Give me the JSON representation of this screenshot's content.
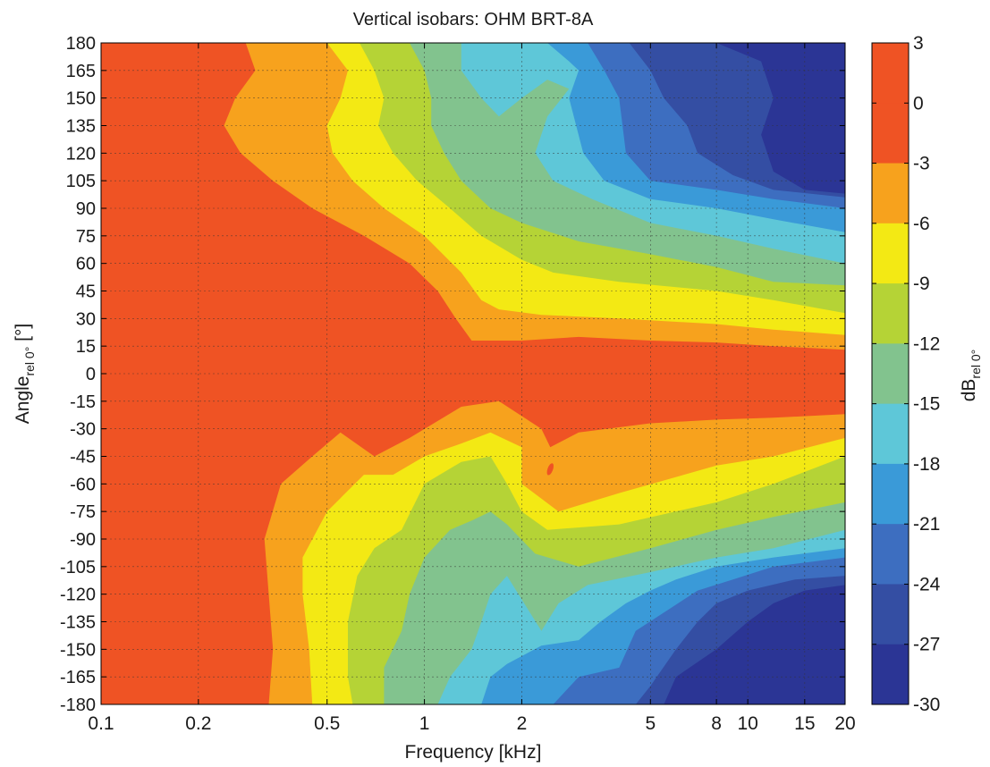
{
  "chart_data": {
    "type": "contour",
    "title": "Vertical isobars: OHM  BRT-8A",
    "xlabel": "Frequency [kHz]",
    "ylabel": {
      "base": "Angle",
      "sub": "rel 0°",
      "tail": " [°]"
    },
    "colorbar_label": {
      "base": "dB",
      "sub": "rel 0°"
    },
    "x_scale": "log",
    "xlim": [
      0.1,
      20
    ],
    "ylim": [
      -180,
      180
    ],
    "x_ticks": [
      {
        "value": 0.1,
        "label": "0.1"
      },
      {
        "value": 0.2,
        "label": "0.2"
      },
      {
        "value": 0.5,
        "label": "0.5"
      },
      {
        "value": 1,
        "label": "1"
      },
      {
        "value": 2,
        "label": "2"
      },
      {
        "value": 5,
        "label": "5"
      },
      {
        "value": 8,
        "label": "8"
      },
      {
        "value": 10,
        "label": "10"
      },
      {
        "value": 15,
        "label": "15"
      },
      {
        "value": 20,
        "label": "20"
      }
    ],
    "y_ticks": [
      {
        "value": 180,
        "label": "180"
      },
      {
        "value": 165,
        "label": "165"
      },
      {
        "value": 150,
        "label": "150"
      },
      {
        "value": 135,
        "label": "135"
      },
      {
        "value": 120,
        "label": "120"
      },
      {
        "value": 105,
        "label": "105"
      },
      {
        "value": 90,
        "label": "90"
      },
      {
        "value": 75,
        "label": "75"
      },
      {
        "value": 60,
        "label": "60"
      },
      {
        "value": 45,
        "label": "45"
      },
      {
        "value": 30,
        "label": "30"
      },
      {
        "value": 15,
        "label": "15"
      },
      {
        "value": 0,
        "label": "0"
      },
      {
        "value": -15,
        "label": "-15"
      },
      {
        "value": -30,
        "label": "-30"
      },
      {
        "value": -45,
        "label": "-45"
      },
      {
        "value": -60,
        "label": "-60"
      },
      {
        "value": -75,
        "label": "-75"
      },
      {
        "value": -90,
        "label": "-90"
      },
      {
        "value": -105,
        "label": "-105"
      },
      {
        "value": -120,
        "label": "-120"
      },
      {
        "value": -135,
        "label": "-135"
      },
      {
        "value": -150,
        "label": "-150"
      },
      {
        "value": -165,
        "label": "-165"
      },
      {
        "value": -180,
        "label": "-180"
      }
    ],
    "colorbar": {
      "levels": [
        {
          "from": 0,
          "to": 3,
          "color": "#ef5324"
        },
        {
          "from": -3,
          "to": 0,
          "color": "#ef5324"
        },
        {
          "from": -6,
          "to": -3,
          "color": "#f7a21d"
        },
        {
          "from": -9,
          "to": -6,
          "color": "#f3e914"
        },
        {
          "from": -12,
          "to": -9,
          "color": "#b5d336"
        },
        {
          "from": -15,
          "to": -12,
          "color": "#82c38e"
        },
        {
          "from": -18,
          "to": -15,
          "color": "#5ec7d8"
        },
        {
          "from": -21,
          "to": -18,
          "color": "#3a9ad8"
        },
        {
          "from": -24,
          "to": -21,
          "color": "#3d6ec0"
        },
        {
          "from": -27,
          "to": -24,
          "color": "#344ea3"
        },
        {
          "from": -30,
          "to": -27,
          "color": "#2b3595"
        }
      ],
      "ticks": [
        {
          "value": 3,
          "label": "3"
        },
        {
          "value": 0,
          "label": "0"
        },
        {
          "value": -3,
          "label": "-3"
        },
        {
          "value": -6,
          "label": "-6"
        },
        {
          "value": -9,
          "label": "-9"
        },
        {
          "value": -12,
          "label": "-12"
        },
        {
          "value": -15,
          "label": "-15"
        },
        {
          "value": -18,
          "label": "-18"
        },
        {
          "value": -21,
          "label": "-21"
        },
        {
          "value": -24,
          "label": "-24"
        },
        {
          "value": -27,
          "label": "-27"
        },
        {
          "value": -30,
          "label": "-30"
        }
      ]
    },
    "grid": true,
    "contour_boundaries": [
      {
        "level": -3,
        "color": "#f7a21d",
        "upper": [
          [
            0.1,
            180
          ],
          [
            0.28,
            180
          ],
          [
            0.3,
            165
          ],
          [
            0.26,
            150
          ],
          [
            0.24,
            135
          ],
          [
            0.27,
            120
          ],
          [
            0.34,
            105
          ],
          [
            0.45,
            90
          ],
          [
            0.65,
            75
          ],
          [
            0.9,
            60
          ],
          [
            1.1,
            45
          ],
          [
            1.25,
            30
          ],
          [
            1.4,
            18
          ],
          [
            2,
            18
          ],
          [
            3,
            20
          ],
          [
            5,
            18
          ],
          [
            8,
            17
          ],
          [
            12,
            15
          ],
          [
            20,
            13
          ]
        ],
        "lower": [
          [
            0.1,
            -180
          ],
          [
            0.33,
            -180
          ],
          [
            0.34,
            -150
          ],
          [
            0.33,
            -120
          ],
          [
            0.32,
            -90
          ],
          [
            0.36,
            -60
          ],
          [
            0.45,
            -45
          ],
          [
            0.55,
            -32
          ],
          [
            0.7,
            -45
          ],
          [
            0.9,
            -35
          ],
          [
            1.3,
            -18
          ],
          [
            1.7,
            -15
          ],
          [
            2.3,
            -30
          ],
          [
            2.45,
            -40
          ],
          [
            3,
            -32
          ],
          [
            5,
            -27
          ],
          [
            8,
            -25
          ],
          [
            12,
            -24
          ],
          [
            20,
            -22
          ]
        ]
      },
      {
        "level": -6,
        "color": "#f3e914",
        "upper": [
          [
            0.1,
            180
          ],
          [
            0.5,
            180
          ],
          [
            0.58,
            165
          ],
          [
            0.55,
            150
          ],
          [
            0.5,
            135
          ],
          [
            0.52,
            120
          ],
          [
            0.6,
            105
          ],
          [
            0.75,
            90
          ],
          [
            1,
            75
          ],
          [
            1.3,
            55
          ],
          [
            1.5,
            40
          ],
          [
            1.7,
            35
          ],
          [
            2.3,
            32
          ],
          [
            4,
            30
          ],
          [
            8,
            27
          ],
          [
            12,
            24
          ],
          [
            20,
            21
          ]
        ],
        "lower": [
          [
            0.1,
            -180
          ],
          [
            0.45,
            -180
          ],
          [
            0.44,
            -150
          ],
          [
            0.42,
            -120
          ],
          [
            0.42,
            -100
          ],
          [
            0.5,
            -75
          ],
          [
            0.65,
            -55
          ],
          [
            0.8,
            -55
          ],
          [
            1,
            -45
          ],
          [
            1.3,
            -38
          ],
          [
            1.6,
            -32
          ],
          [
            2,
            -40
          ],
          [
            2,
            -60
          ],
          [
            2.6,
            -75
          ],
          [
            4,
            -65
          ],
          [
            8,
            -50
          ],
          [
            12,
            -45
          ],
          [
            20,
            -35
          ]
        ]
      },
      {
        "level": -9,
        "color": "#b5d336",
        "upper": [
          [
            0.1,
            180
          ],
          [
            0.63,
            180
          ],
          [
            0.7,
            165
          ],
          [
            0.75,
            150
          ],
          [
            0.72,
            135
          ],
          [
            0.8,
            120
          ],
          [
            0.95,
            105
          ],
          [
            1.2,
            90
          ],
          [
            1.5,
            75
          ],
          [
            2,
            62
          ],
          [
            2.5,
            55
          ],
          [
            4,
            50
          ],
          [
            8,
            45
          ],
          [
            12,
            40
          ],
          [
            20,
            33
          ]
        ],
        "lower": [
          [
            0.1,
            -180
          ],
          [
            0.6,
            -180
          ],
          [
            0.58,
            -165
          ],
          [
            0.58,
            -135
          ],
          [
            0.62,
            -110
          ],
          [
            0.7,
            -95
          ],
          [
            0.85,
            -85
          ],
          [
            1,
            -60
          ],
          [
            1.3,
            -48
          ],
          [
            1.6,
            -45
          ],
          [
            1.8,
            -60
          ],
          [
            2,
            -75
          ],
          [
            2.4,
            -85
          ],
          [
            4,
            -82
          ],
          [
            8,
            -70
          ],
          [
            12,
            -60
          ],
          [
            20,
            -45
          ]
        ]
      },
      {
        "level": -12,
        "color": "#82c38e",
        "upper": [
          [
            0.1,
            180
          ],
          [
            0.9,
            180
          ],
          [
            1,
            165
          ],
          [
            1.05,
            150
          ],
          [
            1.05,
            135
          ],
          [
            1.15,
            120
          ],
          [
            1.3,
            105
          ],
          [
            1.6,
            90
          ],
          [
            2,
            82
          ],
          [
            3,
            72
          ],
          [
            5,
            65
          ],
          [
            8,
            58
          ],
          [
            12,
            50
          ],
          [
            20,
            48
          ]
        ],
        "lower": [
          [
            0.1,
            -180
          ],
          [
            0.75,
            -180
          ],
          [
            0.75,
            -160
          ],
          [
            0.85,
            -140
          ],
          [
            0.9,
            -120
          ],
          [
            1,
            -100
          ],
          [
            1.2,
            -85
          ],
          [
            1.4,
            -80
          ],
          [
            1.6,
            -75
          ],
          [
            1.8,
            -82
          ],
          [
            2.2,
            -98
          ],
          [
            3,
            -105
          ],
          [
            5,
            -95
          ],
          [
            8,
            -85
          ],
          [
            12,
            -78
          ],
          [
            20,
            -70
          ]
        ]
      },
      {
        "level": -15,
        "color": "#5ec7d8",
        "upper": [
          [
            0.1,
            180
          ],
          [
            1.3,
            180
          ],
          [
            1.3,
            165
          ],
          [
            1.5,
            150
          ],
          [
            1.7,
            140
          ],
          [
            2,
            150
          ],
          [
            2.4,
            160
          ],
          [
            2.8,
            155
          ],
          [
            2.4,
            140
          ],
          [
            2.2,
            120
          ],
          [
            2.5,
            105
          ],
          [
            3.3,
            95
          ],
          [
            5,
            82
          ],
          [
            8,
            75
          ],
          [
            12,
            68
          ],
          [
            20,
            60
          ]
        ],
        "lower": [
          [
            0.1,
            -180
          ],
          [
            1.1,
            -180
          ],
          [
            1.2,
            -165
          ],
          [
            1.4,
            -150
          ],
          [
            1.5,
            -135
          ],
          [
            1.6,
            -120
          ],
          [
            1.8,
            -110
          ],
          [
            2.3,
            -140
          ],
          [
            2.6,
            -125
          ],
          [
            3.2,
            -115
          ],
          [
            5,
            -108
          ],
          [
            8,
            -100
          ],
          [
            12,
            -95
          ],
          [
            20,
            -85
          ]
        ]
      },
      {
        "level": -18,
        "color": "#3a9ad8",
        "upper": [
          [
            0.1,
            180
          ],
          [
            2.4,
            180
          ],
          [
            2.8,
            170
          ],
          [
            3,
            165
          ],
          [
            2.8,
            150
          ],
          [
            3.1,
            120
          ],
          [
            3.6,
            105
          ],
          [
            5,
            95
          ],
          [
            8,
            90
          ],
          [
            12,
            84
          ],
          [
            20,
            77
          ]
        ],
        "lower": [
          [
            0.1,
            -180
          ],
          [
            1.5,
            -180
          ],
          [
            1.6,
            -165
          ],
          [
            1.8,
            -158
          ],
          [
            2.3,
            -148
          ],
          [
            3,
            -145
          ],
          [
            3.5,
            -135
          ],
          [
            4.2,
            -125
          ],
          [
            5,
            -118
          ],
          [
            6,
            -112
          ],
          [
            8,
            -105
          ],
          [
            12,
            -100
          ],
          [
            20,
            -95
          ]
        ]
      },
      {
        "level": -21,
        "color": "#3d6ec0",
        "upper": [
          [
            0.1,
            180
          ],
          [
            3.2,
            180
          ],
          [
            3.6,
            165
          ],
          [
            4,
            150
          ],
          [
            4.2,
            120
          ],
          [
            5,
            105
          ],
          [
            8,
            100
          ],
          [
            12,
            95
          ],
          [
            20,
            90
          ]
        ],
        "lower": [
          [
            0.1,
            -180
          ],
          [
            2.5,
            -180
          ],
          [
            3,
            -165
          ],
          [
            4,
            -160
          ],
          [
            4.5,
            -140
          ],
          [
            5.5,
            -130
          ],
          [
            7,
            -118
          ],
          [
            9,
            -112
          ],
          [
            12,
            -105
          ],
          [
            20,
            -100
          ]
        ]
      },
      {
        "level": -24,
        "color": "#344ea3",
        "upper": [
          [
            0.1,
            180
          ],
          [
            4.3,
            180
          ],
          [
            5,
            165
          ],
          [
            5.5,
            150
          ],
          [
            6.5,
            135
          ],
          [
            7,
            120
          ],
          [
            9,
            108
          ],
          [
            12,
            100
          ],
          [
            20,
            96
          ]
        ],
        "lower": [
          [
            0.1,
            -180
          ],
          [
            4.5,
            -180
          ],
          [
            5,
            -170
          ],
          [
            6,
            -150
          ],
          [
            7,
            -135
          ],
          [
            8,
            -125
          ],
          [
            10,
            -118
          ],
          [
            14,
            -112
          ],
          [
            20,
            -110
          ]
        ]
      },
      {
        "level": -27,
        "color": "#2b3595",
        "upper": [
          [
            0.1,
            180
          ],
          [
            8,
            180
          ],
          [
            11,
            170
          ],
          [
            12,
            150
          ],
          [
            11,
            130
          ],
          [
            12,
            110
          ],
          [
            15,
            100
          ],
          [
            20,
            98
          ]
        ],
        "lower": [
          [
            0.1,
            -180
          ],
          [
            5.5,
            -180
          ],
          [
            6,
            -165
          ],
          [
            8,
            -150
          ],
          [
            10,
            -135
          ],
          [
            12,
            -125
          ],
          [
            15,
            -118
          ],
          [
            20,
            -115
          ]
        ]
      }
    ],
    "island": {
      "x": 2.45,
      "y": -52,
      "color": "#ef5324"
    }
  }
}
